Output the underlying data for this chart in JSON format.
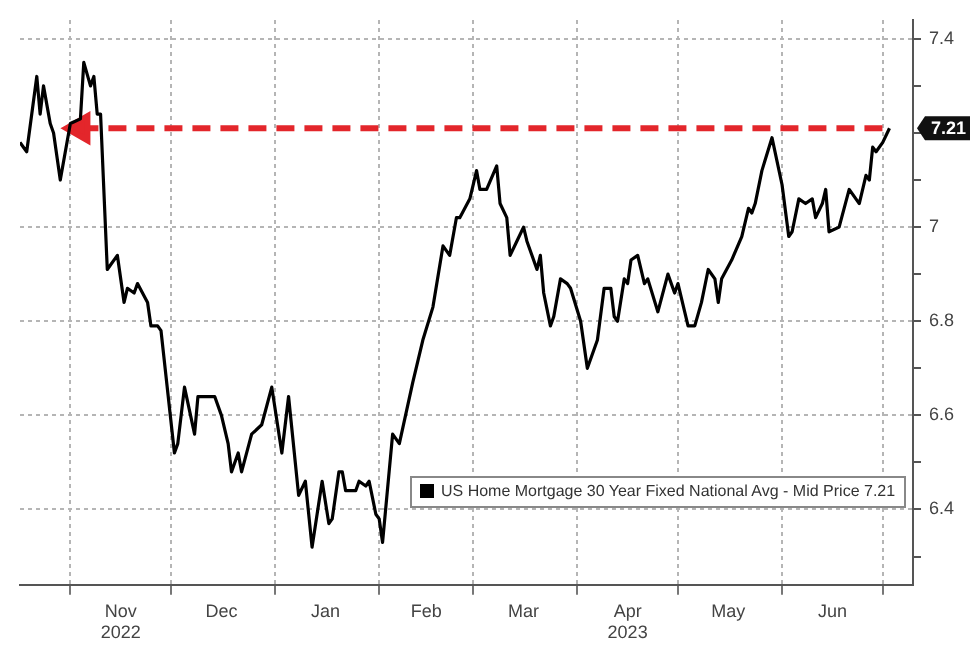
{
  "chart_data": {
    "type": "line",
    "xlim": [
      "2022-10-17",
      "2023-07-10"
    ],
    "xticks": [
      {
        "value": "2022-11-01",
        "label": null
      },
      {
        "value": "2022-11-16",
        "label": "Nov\n2022"
      },
      {
        "value": "2022-12-01",
        "label": null
      },
      {
        "value": "2022-12-16",
        "label": "Dec"
      },
      {
        "value": "2023-01-01",
        "label": null
      },
      {
        "value": "2023-01-16",
        "label": "Jan"
      },
      {
        "value": "2023-02-01",
        "label": null
      },
      {
        "value": "2023-02-15",
        "label": "Feb"
      },
      {
        "value": "2023-03-01",
        "label": null
      },
      {
        "value": "2023-03-16",
        "label": "Mar"
      },
      {
        "value": "2023-04-01",
        "label": null
      },
      {
        "value": "2023-04-16",
        "label": "Apr\n2023"
      },
      {
        "value": "2023-05-01",
        "label": null
      },
      {
        "value": "2023-05-16",
        "label": "May"
      },
      {
        "value": "2023-06-01",
        "label": null
      },
      {
        "value": "2023-06-16",
        "label": "Jun"
      },
      {
        "value": "2023-07-01",
        "label": null
      }
    ],
    "ylim": [
      6.24,
      7.44
    ],
    "yticks": [
      {
        "value": 6.3,
        "label": null
      },
      6.4,
      {
        "value": 6.5,
        "label": null
      },
      6.6,
      {
        "value": 6.7,
        "label": null
      },
      6.8,
      {
        "value": 6.9,
        "label": null
      },
      7.0,
      {
        "value": 7.1,
        "label": null
      },
      {
        "value": 7.2,
        "label": null
      },
      {
        "value": 7.3,
        "label": null
      },
      7.4
    ],
    "grid": true,
    "legend": "bottom right",
    "annotations": [
      {
        "text": "7.21",
        "x": "2023-07-03",
        "y": 7.21
      }
    ],
    "series": [
      {
        "name": "US Home Mortgage 30 Year Fixed National Avg - Mid Price 7.21",
        "color": "#000000",
        "x": [
          "2022-10-17",
          "2022-10-19",
          "2022-10-22",
          "2022-10-23",
          "2022-10-24",
          "2022-10-26",
          "2022-10-27",
          "2022-10-29",
          "2022-11-01",
          "2022-11-04",
          "2022-11-05",
          "2022-11-07",
          "2022-11-08",
          "2022-11-09",
          "2022-11-10",
          "2022-11-12",
          "2022-11-15",
          "2022-11-17",
          "2022-11-18",
          "2022-11-20",
          "2022-11-21",
          "2022-11-24",
          "2022-11-25",
          "2022-11-27",
          "2022-11-28",
          "2022-12-02",
          "2022-12-03",
          "2022-12-05",
          "2022-12-08",
          "2022-12-09",
          "2022-12-14",
          "2022-12-16",
          "2022-12-18",
          "2022-12-19",
          "2022-12-21",
          "2022-12-22",
          "2022-12-25",
          "2022-12-28",
          "2022-12-31",
          "2023-01-03",
          "2023-01-05",
          "2023-01-08",
          "2023-01-10",
          "2023-01-12",
          "2023-01-15",
          "2023-01-17",
          "2023-01-18",
          "2023-01-20",
          "2023-01-21",
          "2023-01-22",
          "2023-01-25",
          "2023-01-26",
          "2023-01-28",
          "2023-01-29",
          "2023-01-31",
          "2023-02-01",
          "2023-02-02",
          "2023-02-05",
          "2023-02-07",
          "2023-02-11",
          "2023-02-14",
          "2023-02-17",
          "2023-02-20",
          "2023-02-22",
          "2023-02-24",
          "2023-02-25",
          "2023-02-28",
          "2023-03-02",
          "2023-03-03",
          "2023-03-05",
          "2023-03-08",
          "2023-03-09",
          "2023-03-11",
          "2023-03-12",
          "2023-03-14",
          "2023-03-16",
          "2023-03-17",
          "2023-03-20",
          "2023-03-21",
          "2023-03-22",
          "2023-03-24",
          "2023-03-25",
          "2023-03-27",
          "2023-03-29",
          "2023-03-30",
          "2023-04-02",
          "2023-04-04",
          "2023-04-07",
          "2023-04-09",
          "2023-04-11",
          "2023-04-12",
          "2023-04-13",
          "2023-04-15",
          "2023-04-16",
          "2023-04-17",
          "2023-04-19",
          "2023-04-21",
          "2023-04-22",
          "2023-04-25",
          "2023-04-28",
          "2023-04-30",
          "2023-05-01",
          "2023-05-03",
          "2023-05-04",
          "2023-05-06",
          "2023-05-08",
          "2023-05-10",
          "2023-05-12",
          "2023-05-13",
          "2023-05-14",
          "2023-05-17",
          "2023-05-20",
          "2023-05-22",
          "2023-05-23",
          "2023-05-24",
          "2023-05-26",
          "2023-05-29",
          "2023-06-01",
          "2023-06-03",
          "2023-06-04",
          "2023-06-06",
          "2023-06-08",
          "2023-06-10",
          "2023-06-11",
          "2023-06-13",
          "2023-06-14",
          "2023-06-15",
          "2023-06-18",
          "2023-06-21",
          "2023-06-24",
          "2023-06-26",
          "2023-06-27",
          "2023-06-28",
          "2023-06-29",
          "2023-07-01",
          "2023-07-03"
        ],
        "values": [
          7.18,
          7.16,
          7.32,
          7.24,
          7.3,
          7.22,
          7.2,
          7.1,
          7.22,
          7.23,
          7.35,
          7.3,
          7.32,
          7.24,
          7.24,
          6.91,
          6.94,
          6.84,
          6.87,
          6.86,
          6.88,
          6.84,
          6.79,
          6.79,
          6.78,
          6.52,
          6.54,
          6.66,
          6.56,
          6.64,
          6.64,
          6.6,
          6.54,
          6.48,
          6.52,
          6.48,
          6.56,
          6.58,
          6.66,
          6.52,
          6.64,
          6.43,
          6.46,
          6.32,
          6.46,
          6.37,
          6.38,
          6.48,
          6.48,
          6.44,
          6.44,
          6.46,
          6.45,
          6.46,
          6.39,
          6.38,
          6.33,
          6.56,
          6.54,
          6.67,
          6.76,
          6.83,
          6.96,
          6.94,
          7.02,
          7.02,
          7.06,
          7.12,
          7.08,
          7.08,
          7.13,
          7.05,
          7.02,
          6.94,
          6.97,
          7.0,
          6.97,
          6.91,
          6.94,
          6.86,
          6.79,
          6.81,
          6.89,
          6.88,
          6.87,
          6.8,
          6.7,
          6.76,
          6.87,
          6.87,
          6.81,
          6.8,
          6.89,
          6.88,
          6.93,
          6.94,
          6.88,
          6.89,
          6.82,
          6.9,
          6.86,
          6.88,
          6.82,
          6.79,
          6.79,
          6.84,
          6.91,
          6.89,
          6.84,
          6.89,
          6.93,
          6.98,
          7.04,
          7.03,
          7.05,
          7.12,
          7.19,
          7.09,
          6.98,
          6.99,
          7.06,
          7.05,
          7.06,
          7.02,
          7.05,
          7.08,
          6.99,
          7.0,
          7.08,
          7.05,
          7.11,
          7.1,
          7.17,
          7.16,
          7.18,
          7.21
        ]
      },
      {
        "color": "#e3262b",
        "line_style": "dashed",
        "marker": "triangle",
        "x": [
          "2022-11-04",
          "2023-07-03"
        ],
        "values": [
          7.21,
          7.21
        ]
      }
    ]
  }
}
